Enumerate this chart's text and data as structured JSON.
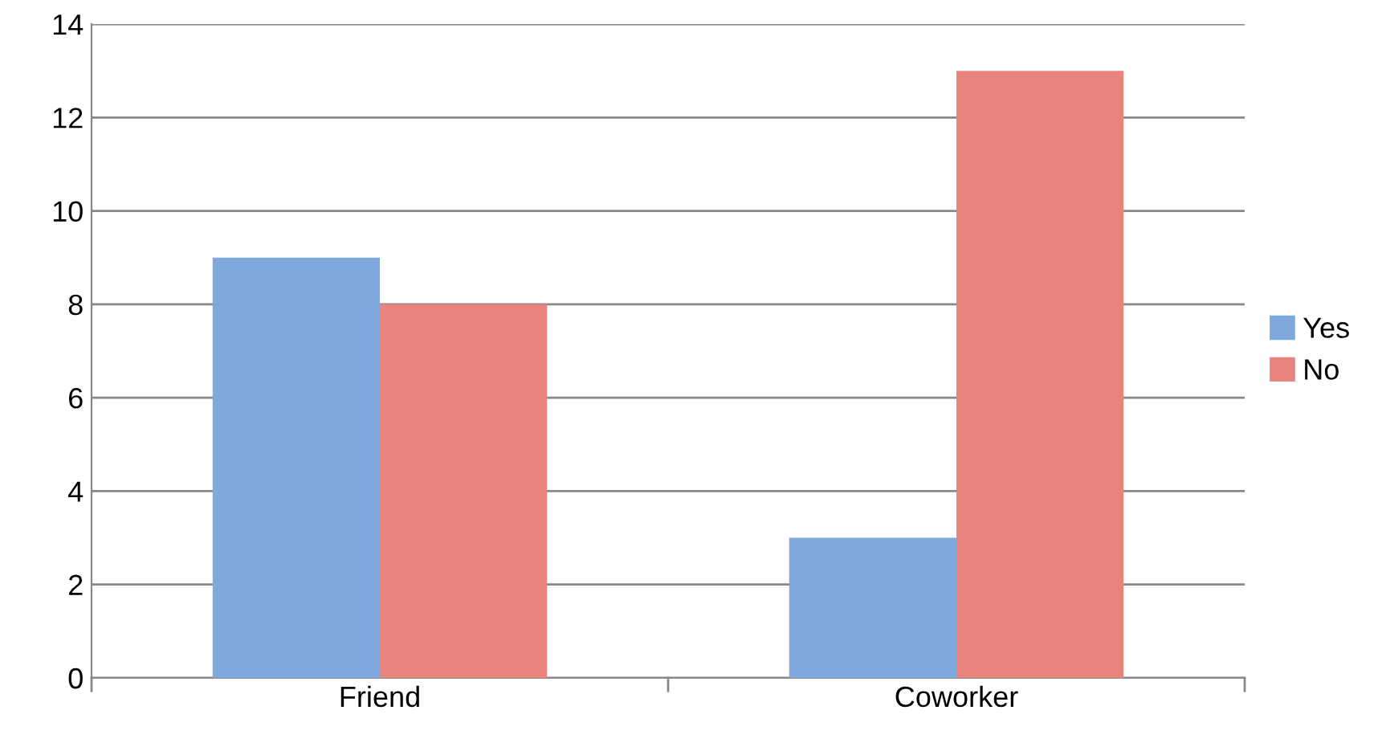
{
  "chart_data": {
    "type": "bar",
    "categories": [
      "Friend",
      "Coworker"
    ],
    "series": [
      {
        "name": "Yes",
        "color": "#7fa9dc",
        "values": [
          9,
          3
        ]
      },
      {
        "name": "No",
        "color": "#e9837d",
        "values": [
          8,
          13
        ]
      }
    ],
    "ylim": [
      0,
      14
    ],
    "yticks": [
      0,
      2,
      4,
      6,
      8,
      10,
      12,
      14
    ],
    "grid": "y",
    "legend": "right"
  }
}
